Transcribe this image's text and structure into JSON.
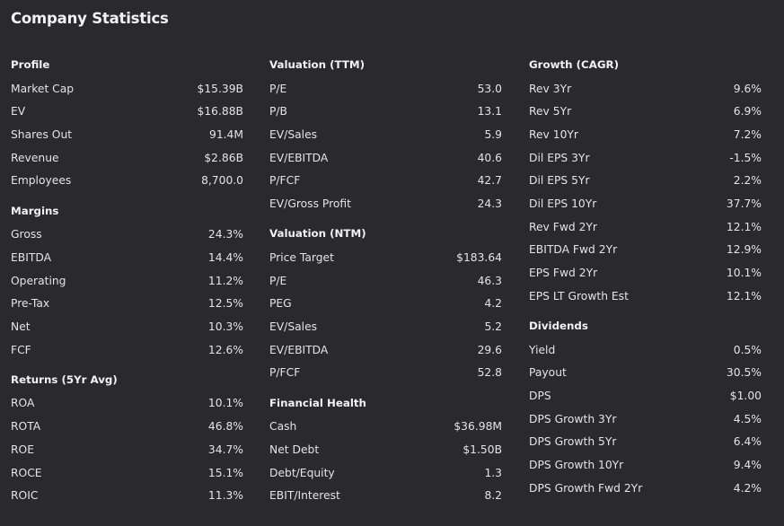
{
  "title": "Company Statistics",
  "columns": [
    {
      "sections": [
        {
          "title": "Profile",
          "rows": [
            {
              "label": "Market Cap",
              "value": "$15.39B"
            },
            {
              "label": "EV",
              "value": "$16.88B"
            },
            {
              "label": "Shares Out",
              "value": "91.4M"
            },
            {
              "label": "Revenue",
              "value": "$2.86B"
            },
            {
              "label": "Employees",
              "value": "8,700.0"
            }
          ]
        },
        {
          "title": "Margins",
          "rows": [
            {
              "label": "Gross",
              "value": "24.3%"
            },
            {
              "label": "EBITDA",
              "value": "14.4%"
            },
            {
              "label": "Operating",
              "value": "11.2%"
            },
            {
              "label": "Pre-Tax",
              "value": "12.5%"
            },
            {
              "label": "Net",
              "value": "10.3%"
            },
            {
              "label": "FCF",
              "value": "12.6%"
            }
          ]
        },
        {
          "title": "Returns (5Yr Avg)",
          "rows": [
            {
              "label": "ROA",
              "value": "10.1%"
            },
            {
              "label": "ROTA",
              "value": "46.8%"
            },
            {
              "label": "ROE",
              "value": "34.7%"
            },
            {
              "label": "ROCE",
              "value": "15.1%"
            },
            {
              "label": "ROIC",
              "value": "11.3%"
            }
          ]
        }
      ]
    },
    {
      "sections": [
        {
          "title": "Valuation (TTM)",
          "rows": [
            {
              "label": "P/E",
              "value": "53.0"
            },
            {
              "label": "P/B",
              "value": "13.1"
            },
            {
              "label": "EV/Sales",
              "value": "5.9"
            },
            {
              "label": "EV/EBITDA",
              "value": "40.6"
            },
            {
              "label": "P/FCF",
              "value": "42.7"
            },
            {
              "label": "EV/Gross Profit",
              "value": "24.3"
            }
          ]
        },
        {
          "title": "Valuation (NTM)",
          "rows": [
            {
              "label": "Price Target",
              "value": "$183.64"
            },
            {
              "label": "P/E",
              "value": "46.3"
            },
            {
              "label": "PEG",
              "value": "4.2"
            },
            {
              "label": "EV/Sales",
              "value": "5.2"
            },
            {
              "label": "EV/EBITDA",
              "value": "29.6"
            },
            {
              "label": "P/FCF",
              "value": "52.8"
            }
          ]
        },
        {
          "title": "Financial Health",
          "rows": [
            {
              "label": "Cash",
              "value": "$36.98M"
            },
            {
              "label": "Net Debt",
              "value": "$1.50B"
            },
            {
              "label": "Debt/Equity",
              "value": "1.3"
            },
            {
              "label": "EBIT/Interest",
              "value": "8.2"
            }
          ]
        }
      ]
    },
    {
      "sections": [
        {
          "title": "Growth (CAGR)",
          "rows": [
            {
              "label": "Rev 3Yr",
              "value": "9.6%"
            },
            {
              "label": "Rev 5Yr",
              "value": "6.9%"
            },
            {
              "label": "Rev 10Yr",
              "value": "7.2%"
            },
            {
              "label": "Dil EPS 3Yr",
              "value": "-1.5%"
            },
            {
              "label": "Dil EPS 5Yr",
              "value": "2.2%"
            },
            {
              "label": "Dil EPS 10Yr",
              "value": "37.7%"
            },
            {
              "label": "Rev Fwd 2Yr",
              "value": "12.1%"
            },
            {
              "label": "EBITDA Fwd 2Yr",
              "value": "12.9%"
            },
            {
              "label": "EPS Fwd 2Yr",
              "value": "10.1%"
            },
            {
              "label": "EPS LT Growth Est",
              "value": "12.1%"
            }
          ]
        },
        {
          "title": "Dividends",
          "rows": [
            {
              "label": "Yield",
              "value": "0.5%"
            },
            {
              "label": "Payout",
              "value": "30.5%"
            },
            {
              "label": "DPS",
              "value": "$1.00"
            },
            {
              "label": "DPS Growth 3Yr",
              "value": "4.5%"
            },
            {
              "label": "DPS Growth 5Yr",
              "value": "6.4%"
            },
            {
              "label": "DPS Growth 10Yr",
              "value": "9.4%"
            },
            {
              "label": "DPS Growth Fwd 2Yr",
              "value": "4.2%"
            }
          ]
        }
      ]
    }
  ]
}
